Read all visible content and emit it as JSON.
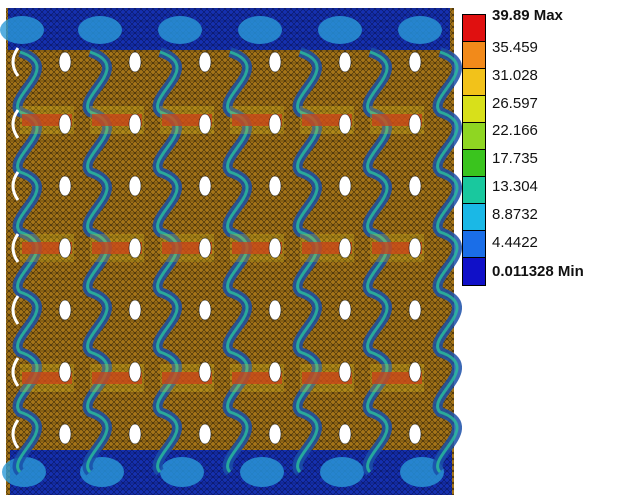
{
  "legend": {
    "max_label": "39.89 Max",
    "min_label": "0.011328 Min",
    "levels": [
      "35.459",
      "31.028",
      "26.597",
      "22.166",
      "17.735",
      "13.304",
      "8.8732",
      "4.4422"
    ],
    "colors": [
      "#e01010",
      "#f28a1a",
      "#f2c21a",
      "#d8e01a",
      "#8fd622",
      "#3ac41e",
      "#19c89e",
      "#1ab8e6",
      "#1a6ee8",
      "#1010c8"
    ]
  },
  "model": {
    "band_color": "#1526a8",
    "mesh_color": "#9a6e16",
    "hole_color": "#ffffff"
  }
}
